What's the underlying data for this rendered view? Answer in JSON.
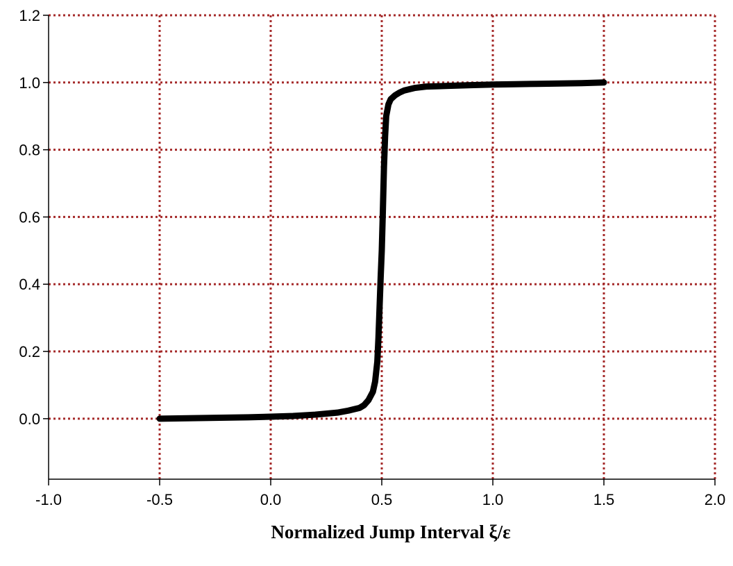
{
  "chart_data": {
    "type": "line",
    "title": "",
    "xlabel": "Normalized Jump Interval ξ/ε",
    "ylabel": "",
    "xlim": [
      -1.0,
      2.0
    ],
    "ylim": [
      -0.18,
      1.2
    ],
    "x_ticks": [
      -1.0,
      -0.5,
      0.0,
      0.5,
      1.0,
      1.5,
      2.0
    ],
    "x_tick_labels": [
      "-1.0",
      "-0.5",
      "0.0",
      "0.5",
      "1.0",
      "1.5",
      "2.0"
    ],
    "y_ticks": [
      0.0,
      0.2,
      0.4,
      0.6,
      0.8,
      1.0,
      1.2
    ],
    "y_tick_labels": [
      "0.0",
      "0.2",
      "0.4",
      "0.6",
      "0.8",
      "1.0",
      "1.2"
    ],
    "grid": true,
    "grid_color": "#a52a2a",
    "line_color": "#000000",
    "legend": "none",
    "series": [
      {
        "x": [
          -0.5,
          -0.3,
          -0.1,
          0.0,
          0.1,
          0.2,
          0.3,
          0.35,
          0.4,
          0.42,
          0.44,
          0.46,
          0.47,
          0.48,
          0.485,
          0.49,
          0.495,
          0.5,
          0.505,
          0.51,
          0.515,
          0.52,
          0.53,
          0.54,
          0.56,
          0.58,
          0.6,
          0.65,
          0.7,
          0.8,
          0.9,
          1.0,
          1.1,
          1.2,
          1.3,
          1.4,
          1.5
        ],
        "y": [
          0.0,
          0.002,
          0.004,
          0.006,
          0.008,
          0.012,
          0.018,
          0.024,
          0.032,
          0.04,
          0.055,
          0.08,
          0.11,
          0.17,
          0.24,
          0.33,
          0.42,
          0.5,
          0.62,
          0.75,
          0.84,
          0.9,
          0.935,
          0.95,
          0.962,
          0.97,
          0.976,
          0.984,
          0.988,
          0.99,
          0.992,
          0.994,
          0.995,
          0.996,
          0.997,
          0.998,
          1.0
        ]
      }
    ]
  }
}
